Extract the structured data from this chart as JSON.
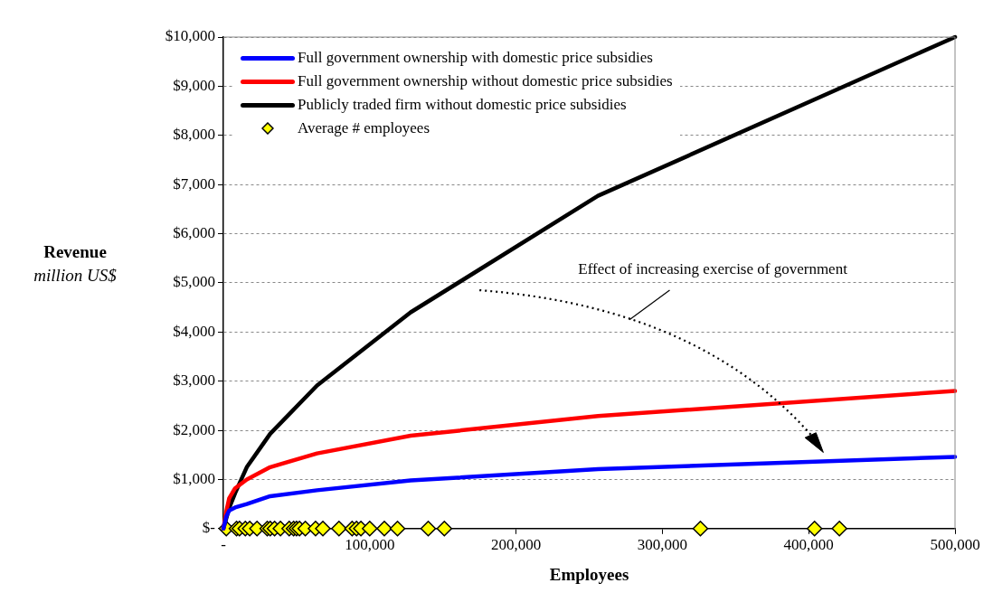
{
  "chart_data": {
    "type": "line",
    "xlabel": "Employees",
    "ylabel": "Revenue\nmillion US$",
    "annotations": [
      "Effect of increasing exercise of government"
    ],
    "xlim": [
      0,
      500000
    ],
    "xticks": [
      {
        "value": 0,
        "label": "-"
      },
      {
        "value": 100000,
        "label": "100,000"
      },
      {
        "value": 200000,
        "label": "200,000"
      },
      {
        "value": 300000,
        "label": "300,000"
      },
      {
        "value": 400000,
        "label": "400,000"
      },
      {
        "value": 500000,
        "label": "500,000"
      }
    ],
    "ylim": [
      0,
      10000
    ],
    "yticks": [
      {
        "value": 0,
        "label": "$-"
      },
      {
        "value": 1000,
        "label": "$1,000"
      },
      {
        "value": 2000,
        "label": "$2,000"
      },
      {
        "value": 3000,
        "label": "$3,000"
      },
      {
        "value": 4000,
        "label": "$4,000"
      },
      {
        "value": 5000,
        "label": "$5,000"
      },
      {
        "value": 6000,
        "label": "$6,000"
      },
      {
        "value": 7000,
        "label": "$7,000"
      },
      {
        "value": 8000,
        "label": "$8,000"
      },
      {
        "value": 9000,
        "label": "$9,000"
      },
      {
        "value": 10000,
        "label": "$10,000"
      }
    ],
    "grid": "y",
    "legend": "top left",
    "series": [
      {
        "name": "Full government ownership with domestic price subsidies",
        "color": "#0000ff",
        "x": [
          0,
          2000,
          4000,
          8000,
          16000,
          32000,
          64000,
          128000,
          256000,
          500000
        ],
        "values": [
          0,
          250,
          370,
          430,
          500,
          660,
          780,
          980,
          1210,
          1460
        ]
      },
      {
        "name": "Full government ownership without domestic price subsidies",
        "color": "#ff0000",
        "x": [
          0,
          2000,
          4000,
          8000,
          16000,
          32000,
          64000,
          128000,
          256000,
          500000
        ],
        "values": [
          0,
          350,
          620,
          820,
          1000,
          1250,
          1530,
          1890,
          2290,
          2800
        ]
      },
      {
        "name": "Publicly traded firm without domestic price subsidies",
        "color": "#000000",
        "x": [
          0,
          4000,
          8000,
          16000,
          32000,
          64000,
          128000,
          256000,
          500000
        ],
        "values": [
          0,
          420,
          720,
          1250,
          1930,
          2910,
          4400,
          6770,
          10000
        ]
      },
      {
        "name": "Average # employees",
        "type": "scatter",
        "marker": "diamond",
        "color": "#ffff00",
        "x": [
          2000,
          9000,
          11000,
          15000,
          18000,
          23000,
          30000,
          32000,
          35000,
          39000,
          45000,
          48000,
          50000,
          52000,
          56000,
          63000,
          68000,
          79000,
          88000,
          91000,
          94000,
          100000,
          110000,
          119000,
          140000,
          151000,
          326000,
          404000,
          421000
        ],
        "values": [
          0,
          0,
          0,
          0,
          0,
          0,
          0,
          0,
          0,
          0,
          0,
          0,
          0,
          0,
          0,
          0,
          0,
          0,
          0,
          0,
          0,
          0,
          0,
          0,
          0,
          0,
          0,
          0,
          0
        ]
      }
    ]
  }
}
